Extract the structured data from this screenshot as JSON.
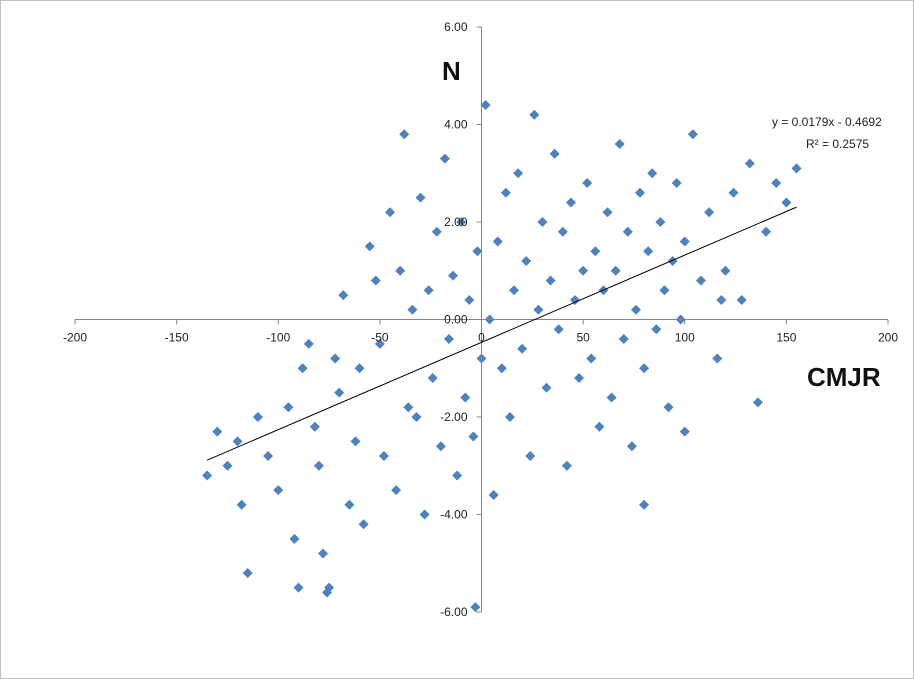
{
  "chart_data": {
    "type": "scatter",
    "title": "",
    "xlabel": "CMJR",
    "ylabel": "N",
    "xlim": [
      -200,
      200
    ],
    "ylim": [
      -6,
      6
    ],
    "x_ticks": [
      "-200",
      "-150",
      "-100",
      "-50",
      "0",
      "50",
      "100",
      "150",
      "200"
    ],
    "y_ticks": [
      "6.00",
      "4.00",
      "2.00",
      "0.00",
      "-2.00",
      "-4.00",
      "-6.00"
    ],
    "grid": false,
    "legend": "none",
    "marker": "diamond",
    "colors": {
      "points": "#4f81bd",
      "trendline": "#000000"
    },
    "trendline": {
      "type": "linear",
      "slope": 0.0179,
      "intercept": -0.4692,
      "x_range": [
        -135,
        155
      ],
      "equation": "y = 0.0179x - 0.4692",
      "r_squared_label": "R² = 0.2575"
    },
    "series": [
      {
        "points": [
          [
            -130,
            -2.3
          ],
          [
            -125,
            -3.0
          ],
          [
            -135,
            -3.2
          ],
          [
            -120,
            -2.5
          ],
          [
            -118,
            -3.8
          ],
          [
            -110,
            -2.0
          ],
          [
            -105,
            -2.8
          ],
          [
            -100,
            -3.5
          ],
          [
            -95,
            -1.8
          ],
          [
            -92,
            -4.5
          ],
          [
            -88,
            -1.0
          ],
          [
            -85,
            -0.5
          ],
          [
            -82,
            -2.2
          ],
          [
            -80,
            -3.0
          ],
          [
            -78,
            -4.8
          ],
          [
            -75,
            -5.5
          ],
          [
            -72,
            -0.8
          ],
          [
            -70,
            -1.5
          ],
          [
            -68,
            0.5
          ],
          [
            -65,
            -3.8
          ],
          [
            -62,
            -2.5
          ],
          [
            -60,
            -1.0
          ],
          [
            -58,
            -4.2
          ],
          [
            -55,
            1.5
          ],
          [
            -52,
            0.8
          ],
          [
            -50,
            -0.5
          ],
          [
            -48,
            -2.8
          ],
          [
            -45,
            2.2
          ],
          [
            -42,
            -3.5
          ],
          [
            -40,
            1.0
          ],
          [
            -38,
            3.8
          ],
          [
            -36,
            -1.8
          ],
          [
            -34,
            0.2
          ],
          [
            -32,
            -2.0
          ],
          [
            -30,
            2.5
          ],
          [
            -28,
            -4.0
          ],
          [
            -26,
            0.6
          ],
          [
            -24,
            -1.2
          ],
          [
            -22,
            1.8
          ],
          [
            -20,
            -2.6
          ],
          [
            -18,
            3.3
          ],
          [
            -16,
            -0.4
          ],
          [
            -14,
            0.9
          ],
          [
            -12,
            -3.2
          ],
          [
            -10,
            2.0
          ],
          [
            -8,
            -1.6
          ],
          [
            -6,
            0.4
          ],
          [
            -4,
            -2.4
          ],
          [
            -2,
            1.4
          ],
          [
            0,
            -0.8
          ],
          [
            2,
            4.4
          ],
          [
            4,
            0.0
          ],
          [
            6,
            -3.6
          ],
          [
            8,
            1.6
          ],
          [
            10,
            -1.0
          ],
          [
            12,
            2.6
          ],
          [
            14,
            -2.0
          ],
          [
            16,
            0.6
          ],
          [
            18,
            3.0
          ],
          [
            20,
            -0.6
          ],
          [
            22,
            1.2
          ],
          [
            24,
            -2.8
          ],
          [
            26,
            4.2
          ],
          [
            28,
            0.2
          ],
          [
            30,
            2.0
          ],
          [
            32,
            -1.4
          ],
          [
            34,
            0.8
          ],
          [
            36,
            3.4
          ],
          [
            38,
            -0.2
          ],
          [
            40,
            1.8
          ],
          [
            42,
            -3.0
          ],
          [
            44,
            2.4
          ],
          [
            46,
            0.4
          ],
          [
            48,
            -1.2
          ],
          [
            50,
            1.0
          ],
          [
            52,
            2.8
          ],
          [
            54,
            -0.8
          ],
          [
            56,
            1.4
          ],
          [
            58,
            -2.2
          ],
          [
            60,
            0.6
          ],
          [
            62,
            2.2
          ],
          [
            64,
            -1.6
          ],
          [
            66,
            1.0
          ],
          [
            68,
            3.6
          ],
          [
            70,
            -0.4
          ],
          [
            72,
            1.8
          ],
          [
            74,
            -2.6
          ],
          [
            76,
            0.2
          ],
          [
            78,
            2.6
          ],
          [
            80,
            -1.0
          ],
          [
            82,
            1.4
          ],
          [
            84,
            3.0
          ],
          [
            86,
            -0.2
          ],
          [
            88,
            2.0
          ],
          [
            90,
            0.6
          ],
          [
            92,
            -1.8
          ],
          [
            94,
            1.2
          ],
          [
            96,
            2.8
          ],
          [
            98,
            0.0
          ],
          [
            100,
            1.6
          ],
          [
            104,
            3.8
          ],
          [
            108,
            0.8
          ],
          [
            112,
            2.2
          ],
          [
            116,
            -0.8
          ],
          [
            120,
            1.0
          ],
          [
            124,
            2.6
          ],
          [
            128,
            0.4
          ],
          [
            132,
            3.2
          ],
          [
            136,
            -1.7
          ],
          [
            140,
            1.8
          ],
          [
            145,
            2.8
          ],
          [
            150,
            2.4
          ],
          [
            155,
            3.1
          ],
          [
            -115,
            -5.2
          ],
          [
            -90,
            -5.5
          ],
          [
            -76,
            -5.6
          ],
          [
            -3,
            -5.9
          ],
          [
            80,
            -3.8
          ],
          [
            100,
            -2.3
          ],
          [
            118,
            0.4
          ]
        ]
      }
    ]
  }
}
